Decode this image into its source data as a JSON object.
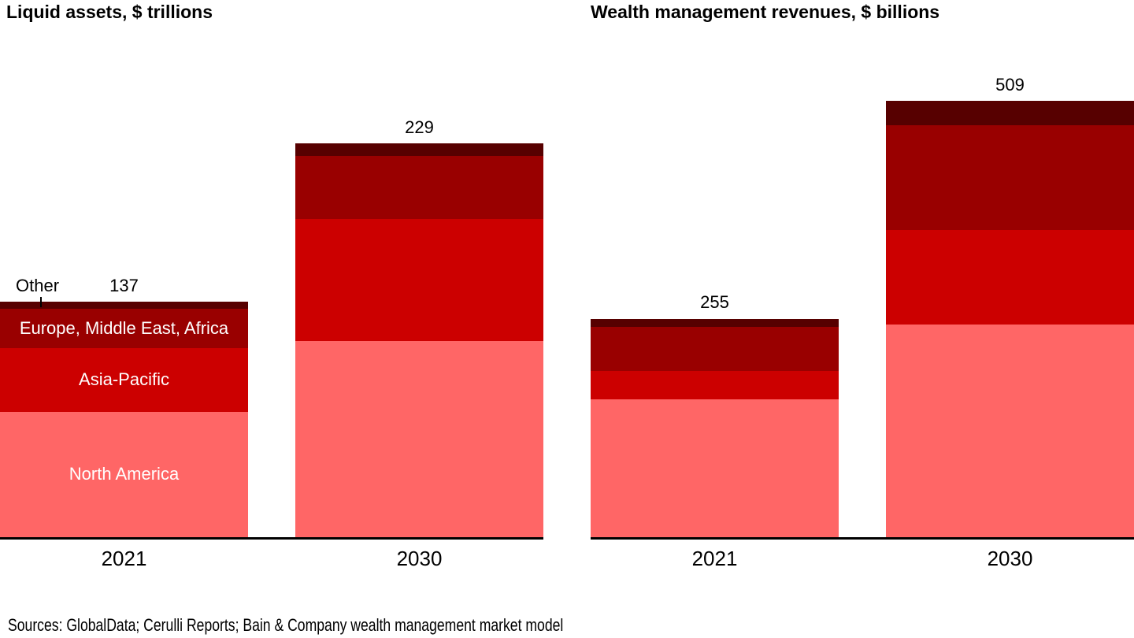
{
  "page": {
    "footer_sources": "Sources: GlobalData; Cerulli Reports; Bain & Company wealth management market model"
  },
  "colors": {
    "north_america": "#ff6666",
    "asia_pacific": "#cc0000",
    "europe_mea": "#990000",
    "other": "#570000",
    "axis": "#000000",
    "text": "#000000",
    "segment_text": "#ffffff"
  },
  "callout": {
    "label": "Other"
  },
  "chart_data": [
    {
      "type": "bar",
      "stacked": true,
      "title": "Liquid assets, $ trillions",
      "unit": "$ trillions",
      "categories": [
        "2021",
        "2030"
      ],
      "series": [
        {
          "name": "North America",
          "color_key": "north_america",
          "values": [
            73,
            114
          ]
        },
        {
          "name": "Asia-Pacific",
          "color_key": "asia_pacific",
          "values": [
            37,
            71
          ]
        },
        {
          "name": "Europe, Middle East, Africa",
          "color_key": "europe_mea",
          "values": [
            23,
            37
          ]
        },
        {
          "name": "Other",
          "color_key": "other",
          "values": [
            4,
            7
          ]
        }
      ],
      "totals": [
        137,
        229
      ],
      "show_segment_labels_on_bar": 0,
      "legend": "labels-inside-first-bar",
      "grid": false
    },
    {
      "type": "bar",
      "stacked": true,
      "title": "Wealth management revenues, $ billions",
      "unit": "$ billions",
      "categories": [
        "2021",
        "2030"
      ],
      "series": [
        {
          "name": "North America",
          "color_key": "north_america",
          "values": [
            161,
            248
          ]
        },
        {
          "name": "Asia-Pacific",
          "color_key": "asia_pacific",
          "values": [
            33,
            110
          ]
        },
        {
          "name": "Europe, Middle East, Africa",
          "color_key": "europe_mea",
          "values": [
            51,
            123
          ]
        },
        {
          "name": "Other",
          "color_key": "other",
          "values": [
            10,
            28
          ]
        }
      ],
      "totals": [
        255,
        509
      ],
      "show_segment_labels_on_bar": null,
      "legend": "none",
      "grid": false
    }
  ]
}
